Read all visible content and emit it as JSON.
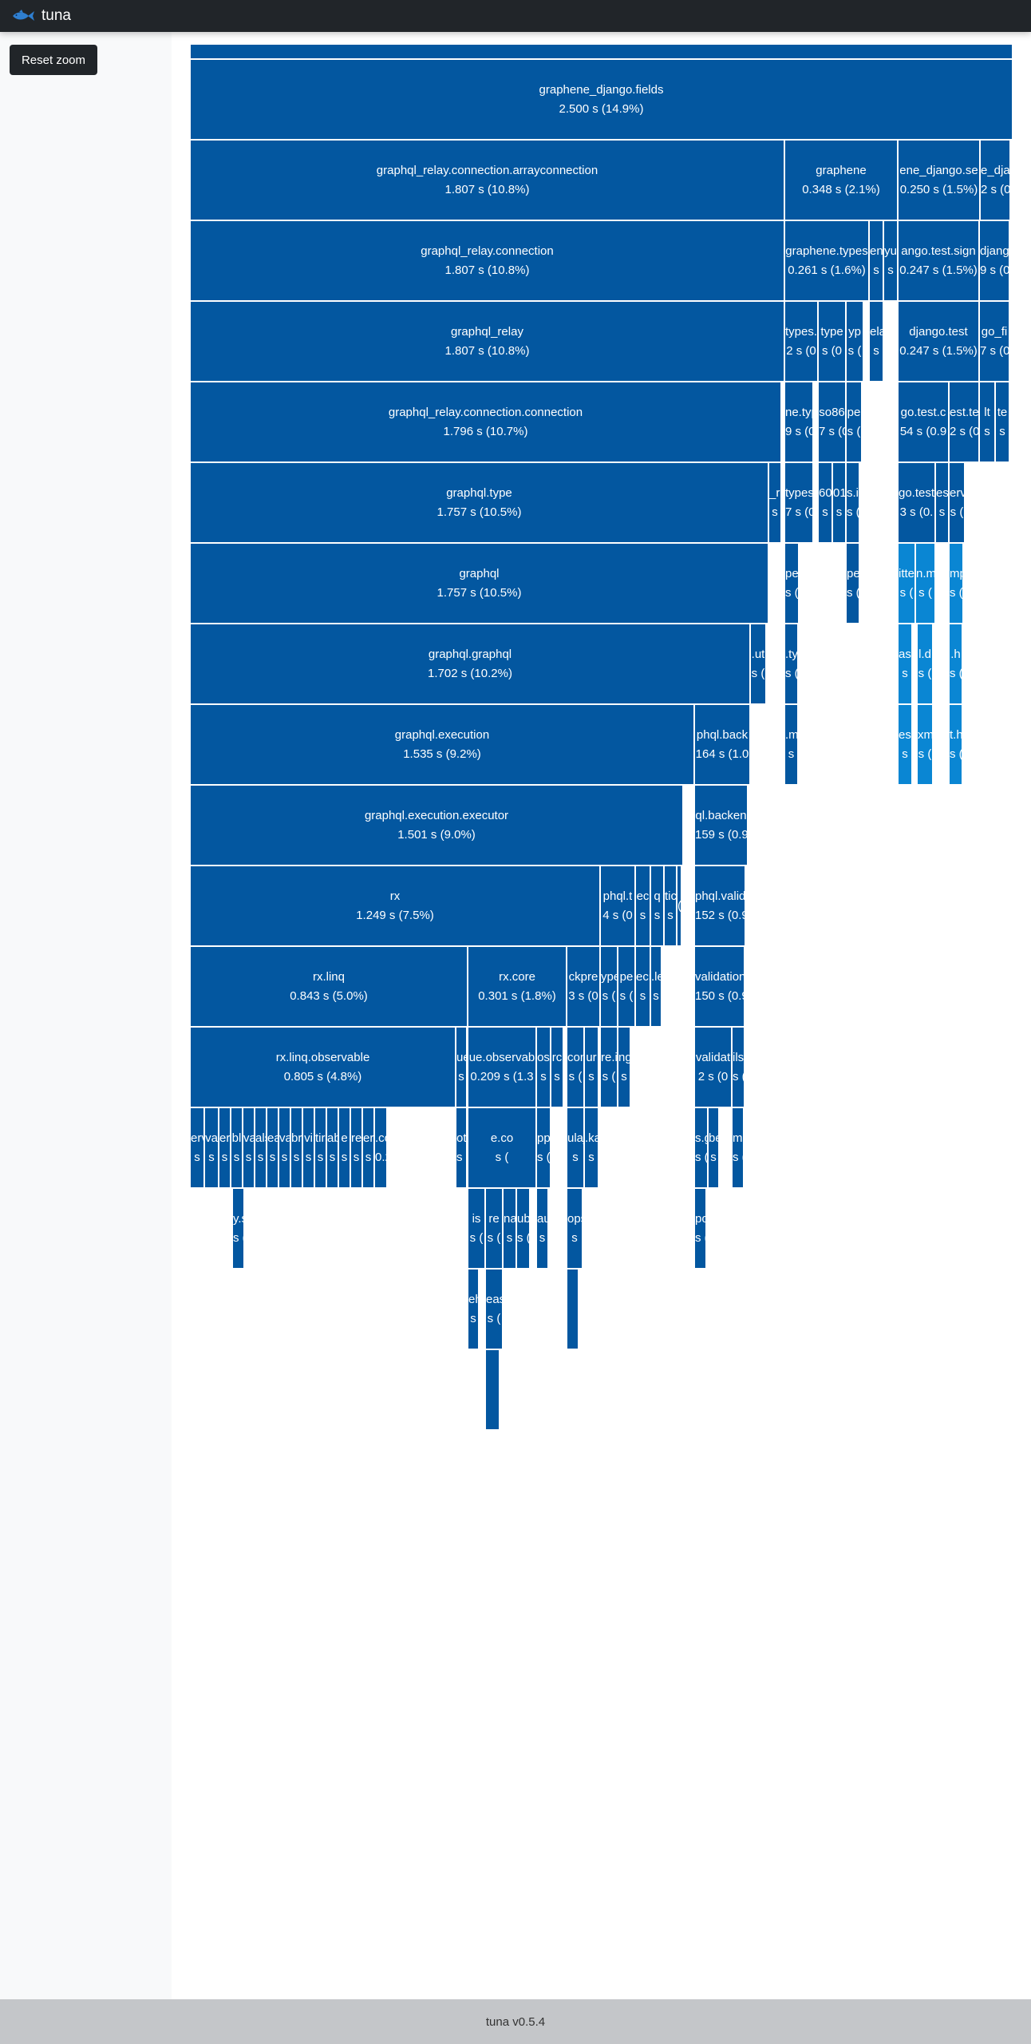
{
  "app": {
    "title": "tuna",
    "reset_label": "Reset zoom",
    "footer_text": "tuna v0.5.4",
    "colors": {
      "navbar": "#212529",
      "block": "#0357a0",
      "block_light": "#0a86d3",
      "border": "#ffffff",
      "footer": "#c4c6c9"
    }
  },
  "flame": [
    {
      "name": "",
      "time": ""
    },
    {
      "name": "graphene_django.fields",
      "time": "2.500 s (14.9%)"
    },
    {
      "name": "graphql_relay.connection.arrayconnection",
      "time": "1.807 s (10.8%)"
    },
    {
      "name": "graphene",
      "time": "0.348 s (2.1%)"
    },
    {
      "name": "ene_django.se",
      "time": "0.250 s (1.5%)"
    },
    {
      "name": "e_dja",
      "time": "2 s (0"
    },
    {
      "name": "graphql_relay.connection",
      "time": "1.807 s (10.8%)"
    },
    {
      "name": "graphene.types",
      "time": "0.261 s (1.6%)"
    },
    {
      "name": "en",
      "time": "s"
    },
    {
      "name": "yu",
      "time": "s"
    },
    {
      "name": "ango.test.sign",
      "time": "0.247 s (1.5%)"
    },
    {
      "name": "djang",
      "time": "9 s (0"
    },
    {
      "name": "graphql_relay",
      "time": "1.807 s (10.8%)"
    },
    {
      "name": "types.",
      "time": "2 s (0"
    },
    {
      "name": "type",
      "time": "s (0"
    },
    {
      "name": "yp",
      "time": "s ("
    },
    {
      "name": "ela",
      "time": "s"
    },
    {
      "name": "django.test",
      "time": "0.247 s (1.5%)"
    },
    {
      "name": "go_fi",
      "time": "7 s (0"
    },
    {
      "name": "graphql_relay.connection.connection",
      "time": "1.796 s (10.7%)"
    },
    {
      "name": "ne.typ",
      "time": "9 s (0"
    },
    {
      "name": "so86",
      "time": "7 s (0"
    },
    {
      "name": "pe",
      "time": "s ("
    },
    {
      "name": "go.test.c",
      "time": "54 s (0.9"
    },
    {
      "name": "est.te",
      "time": "2 s (0"
    },
    {
      "name": "lt",
      "time": "s"
    },
    {
      "name": "te",
      "time": "s"
    },
    {
      "name": "graphql.type",
      "time": "1.757 s (10.5%)"
    },
    {
      "name": "_re",
      "time": "s"
    },
    {
      "name": "types",
      "time": "7 s (0"
    },
    {
      "name": "60",
      "time": "s"
    },
    {
      "name": "01",
      "time": "s"
    },
    {
      "name": "s.i",
      "time": "s ("
    },
    {
      "name": "go.test",
      "time": "3 s (0."
    },
    {
      "name": "es",
      "time": "s"
    },
    {
      "name": "erv",
      "time": "s ("
    },
    {
      "name": "graphql",
      "time": "1.757 s (10.5%)"
    },
    {
      "name": "pe",
      "time": "s ("
    },
    {
      "name": "pe",
      "time": "s ("
    },
    {
      "name": "itte",
      "time": "s ("
    },
    {
      "name": "n.m",
      "time": "s ("
    },
    {
      "name": "mp",
      "time": "s ("
    },
    {
      "name": "graphql.graphql",
      "time": "1.702 s (10.2%)"
    },
    {
      "name": ".ut",
      "time": "s ("
    },
    {
      "name": ".ty",
      "time": "s ("
    },
    {
      "name": "asy",
      "time": "s"
    },
    {
      "name": "l.d",
      "time": "s ("
    },
    {
      "name": ".h",
      "time": "s ("
    },
    {
      "name": "graphql.execution",
      "time": "1.535 s (9.2%)"
    },
    {
      "name": "phql.back",
      "time": "164 s (1.0"
    },
    {
      "name": ".m",
      "time": "s"
    },
    {
      "name": "est",
      "time": "s"
    },
    {
      "name": "xm",
      "time": "s ("
    },
    {
      "name": "t.h",
      "time": "s ("
    },
    {
      "name": "graphql.execution.executor",
      "time": "1.501 s (9.0%)"
    },
    {
      "name": "ql.backen",
      "time": "159 s (0.9"
    },
    {
      "name": "rx",
      "time": "1.249 s (7.5%)"
    },
    {
      "name": "phql.t",
      "time": "4 s (0"
    },
    {
      "name": "ec",
      "time": "s"
    },
    {
      "name": "q",
      "time": "s"
    },
    {
      "name": "tic",
      "time": "s"
    },
    {
      "name": "",
      "time": "("
    },
    {
      "name": "phql.valida",
      "time": "152 s (0.9"
    },
    {
      "name": "rx.linq",
      "time": "0.843 s (5.0%)"
    },
    {
      "name": "rx.core",
      "time": "0.301 s (1.8%)"
    },
    {
      "name": "ckpre",
      "time": "3 s (0"
    },
    {
      "name": "ype",
      "time": "s ("
    },
    {
      "name": "pe",
      "time": "s ("
    },
    {
      "name": "ecr",
      "time": "s"
    },
    {
      "name": ".le",
      "time": "s"
    },
    {
      "name": "validation.",
      "time": "150 s (0.9"
    },
    {
      "name": "rx.linq.observable",
      "time": "0.805 s (4.8%)"
    },
    {
      "name": "ue",
      "time": "s"
    },
    {
      "name": "ue.observab",
      "time": "0.209 s (1.3"
    },
    {
      "name": "os",
      "time": "s"
    },
    {
      "name": "rc",
      "time": "s"
    },
    {
      "name": "conc",
      "time": "s ("
    },
    {
      "name": "ur",
      "time": "s"
    },
    {
      "name": "re.in",
      "time": "s ("
    },
    {
      "name": "ng",
      "time": "s"
    },
    {
      "name": "validat",
      "time": "2 s (0"
    },
    {
      "name": "ils",
      "time": "s ("
    },
    {
      "name": "erv",
      "time": "s"
    },
    {
      "name": "va",
      "time": "s"
    },
    {
      "name": "er",
      "time": "s"
    },
    {
      "name": "bl",
      "time": "s"
    },
    {
      "name": "va",
      "time": "s"
    },
    {
      "name": "als",
      "time": "s"
    },
    {
      "name": "ea",
      "time": "s"
    },
    {
      "name": "vai",
      "time": "s"
    },
    {
      "name": "br",
      "time": "s"
    },
    {
      "name": "vi",
      "time": "s"
    },
    {
      "name": "tire",
      "time": "s"
    },
    {
      "name": "able",
      "time": "s"
    },
    {
      "name": "e",
      "time": "s"
    },
    {
      "name": "ren",
      "time": "s"
    },
    {
      "name": "er",
      "time": "s"
    },
    {
      "name": ".concurren",
      "time": "0.205 s (1.2"
    },
    {
      "name": "otc",
      "time": "s ("
    },
    {
      "name": "e.co",
      "time": "s ("
    },
    {
      "name": "pp",
      "time": "s ("
    },
    {
      "name": "ulaj",
      "time": "s"
    },
    {
      "name": ".ka",
      "time": "s"
    },
    {
      "name": "s.g",
      "time": "s ("
    },
    {
      "name": "bec",
      "time": "s"
    },
    {
      "name": "ma",
      "time": "s ("
    },
    {
      "name": "y.s",
      "time": "s ("
    },
    {
      "name": "is",
      "time": "s ("
    },
    {
      "name": "re",
      "time": "s ("
    },
    {
      "name": "na",
      "time": "s"
    },
    {
      "name": "ubj",
      "time": "s ("
    },
    {
      "name": "aut",
      "time": "s"
    },
    {
      "name": "ops",
      "time": "s"
    },
    {
      "name": "pos",
      "time": "s ("
    },
    {
      "name": "eh",
      "time": "s"
    },
    {
      "name": "eas",
      "time": "s ("
    }
  ]
}
